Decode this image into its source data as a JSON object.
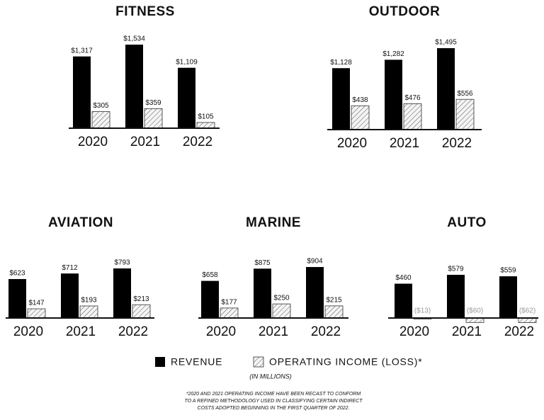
{
  "chart_data": [
    {
      "type": "bar",
      "title": "FITNESS",
      "categories": [
        "2020",
        "2021",
        "2022"
      ],
      "series": [
        {
          "name": "REVENUE",
          "color": "#000000",
          "values": [
            1317,
            1534,
            1109
          ],
          "value_labels": [
            "$1,317",
            "$1,534",
            "$1,109"
          ]
        },
        {
          "name": "OPERATING INCOME (LOSS)*",
          "color": "#555555",
          "hatched": true,
          "values": [
            305,
            359,
            105
          ],
          "value_labels": [
            "$305",
            "$359",
            "$105"
          ]
        }
      ]
    },
    {
      "type": "bar",
      "title": "OUTDOOR",
      "categories": [
        "2020",
        "2021",
        "2022"
      ],
      "series": [
        {
          "color": "#000000",
          "values": [
            1128,
            1282,
            1495
          ],
          "value_labels": [
            "$1,128",
            "$1,282",
            "$1,495"
          ]
        },
        {
          "color": "#555555",
          "hatched": true,
          "values": [
            438,
            476,
            556
          ],
          "value_labels": [
            "$438",
            "$476",
            "$556"
          ]
        }
      ]
    },
    {
      "type": "bar",
      "title": "AVIATION",
      "categories": [
        "2020",
        "2021",
        "2022"
      ],
      "series": [
        {
          "color": "#000000",
          "values": [
            623,
            712,
            793
          ],
          "value_labels": [
            "$623",
            "$712",
            "$793"
          ]
        },
        {
          "color": "#555555",
          "hatched": true,
          "values": [
            147,
            193,
            213
          ],
          "value_labels": [
            "$147",
            "$193",
            "$213"
          ]
        }
      ]
    },
    {
      "type": "bar",
      "title": "MARINE",
      "categories": [
        "2020",
        "2021",
        "2022"
      ],
      "series": [
        {
          "color": "#000000",
          "values": [
            658,
            875,
            904
          ],
          "value_labels": [
            "$658",
            "$875",
            "$904"
          ]
        },
        {
          "color": "#555555",
          "hatched": true,
          "values": [
            177,
            250,
            215
          ],
          "value_labels": [
            "$177",
            "$250",
            "$215"
          ]
        }
      ]
    },
    {
      "type": "bar",
      "title": "AUTO",
      "categories": [
        "2020",
        "2021",
        "2022"
      ],
      "series": [
        {
          "color": "#000000",
          "values": [
            460,
            579,
            559
          ],
          "value_labels": [
            "$460",
            "$579",
            "$559"
          ]
        },
        {
          "color": "#555555",
          "hatched": true,
          "values": [
            -13,
            -60,
            -62
          ],
          "value_labels": [
            "($13)",
            "($60)",
            "($62)"
          ]
        }
      ]
    }
  ],
  "notes": {
    "units": "(IN MILLIONS)",
    "footnote": [
      "*2020 AND 2021 OPERATING INCOME HAVE BEEN RECAST TO CONFORM",
      "TO A REFINED METHODOLOGY USED IN CLASSIFYING CERTAIN INDIRECT",
      "COSTS ADOPTED BEGINNING IN THE FIRST QUARTER OF 2022."
    ]
  }
}
